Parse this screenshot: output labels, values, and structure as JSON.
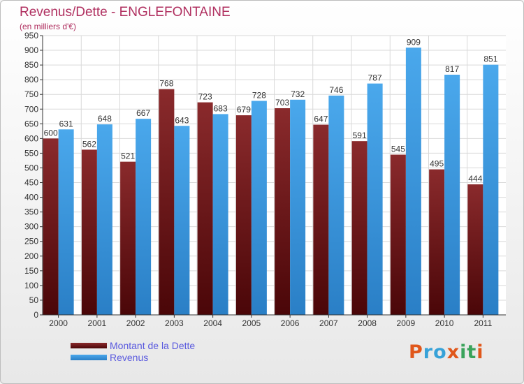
{
  "title": "Revenus/Dette - ENGLEFONTAINE",
  "subtitle": "(en milliers d'€)",
  "legend": [
    {
      "label": "Montant de la Dette",
      "color": "#7a1518"
    },
    {
      "label": "Revenus",
      "color": "#3d9be4"
    }
  ],
  "brand": {
    "text": "Proxiti",
    "letter_colors": [
      "#e0571b",
      "#37a2d8",
      "#37a2d8",
      "#e0571b",
      "#3aa35b",
      "#3aa35b",
      "#e0571b"
    ]
  },
  "chart_data": {
    "type": "bar",
    "categories": [
      "2000",
      "2001",
      "2002",
      "2003",
      "2004",
      "2005",
      "2006",
      "2007",
      "2008",
      "2009",
      "2010",
      "2011"
    ],
    "series": [
      {
        "name": "Montant de la Dette",
        "color": "#7a1518",
        "values": [
          600,
          562,
          521,
          768,
          723,
          679,
          703,
          647,
          591,
          545,
          495,
          444
        ]
      },
      {
        "name": "Revenus",
        "color": "#3d9be4",
        "values": [
          631,
          648,
          667,
          643,
          683,
          728,
          732,
          746,
          787,
          909,
          817,
          851
        ]
      }
    ],
    "ylim": [
      0,
      950
    ],
    "ytick_step": 50,
    "grid": true,
    "value_labels": true,
    "legend_position": "bottom-left"
  }
}
